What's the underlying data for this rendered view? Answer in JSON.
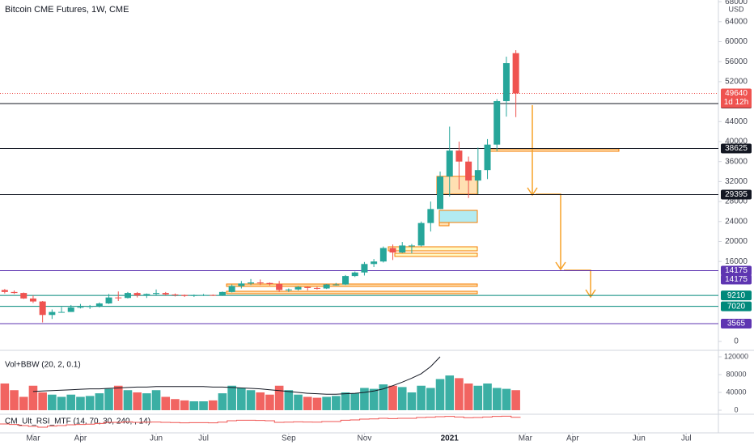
{
  "chart_data": {
    "type": "candlestick",
    "title": "Bitcoin CME Futures, 1W, CME",
    "currency": "USD",
    "xlim": [
      -0.5,
      75.4
    ],
    "xticks": [
      {
        "value": 3,
        "label": "Mar"
      },
      {
        "value": 8,
        "label": "Apr"
      },
      {
        "value": 16,
        "label": "Jun"
      },
      {
        "value": 21,
        "label": "Jul"
      },
      {
        "value": 30,
        "label": "Sep"
      },
      {
        "value": 38,
        "label": "Nov"
      },
      {
        "value": 47,
        "label": "2021"
      },
      {
        "value": 55,
        "label": "Mar"
      },
      {
        "value": 60,
        "label": "Apr"
      },
      {
        "value": 67,
        "label": "Jun"
      },
      {
        "value": 72,
        "label": "Jul"
      }
    ],
    "ylim": [
      -1620,
      68340
    ],
    "yticks": [
      0,
      16000,
      20000,
      24000,
      28000,
      32000,
      36000,
      40000,
      44000,
      52000,
      56000,
      60000,
      64000,
      68000
    ],
    "up_color": "#26a69a",
    "down_color": "#ef5350",
    "open": [
      10300,
      9900,
      9700,
      8600,
      8000,
      5300,
      5900,
      5900,
      6800,
      6900,
      7100,
      7600,
      8800,
      8700,
      9700,
      9200,
      9500,
      9700,
      9400,
      9300,
      9100,
      9300,
      9300,
      9200,
      9900,
      11100,
      11600,
      11800,
      11700,
      11500,
      10300,
      10400,
      10900,
      10700,
      10600,
      11400,
      11400,
      13100,
      13800,
      15500,
      16000,
      18700,
      17800,
      19200,
      19200,
      23700,
      26500,
      33000,
      38200,
      36000,
      32200,
      34300,
      39400,
      48100,
      57700
    ],
    "high": [
      10500,
      10200,
      9800,
      9200,
      8100,
      6400,
      6900,
      7300,
      7500,
      7300,
      7800,
      9500,
      10000,
      9900,
      9900,
      9600,
      10400,
      9900,
      9600,
      9400,
      9400,
      9500,
      9400,
      10000,
      11400,
      12100,
      12500,
      12400,
      11800,
      12100,
      10600,
      11100,
      11000,
      10900,
      11500,
      11700,
      13300,
      14000,
      15900,
      16500,
      19000,
      19400,
      19900,
      19500,
      24000,
      28000,
      34000,
      43000,
      40000,
      37000,
      38800,
      40500,
      48500,
      57000,
      58300
    ],
    "low": [
      9600,
      9500,
      8500,
      7700,
      3800,
      4500,
      5800,
      5900,
      6600,
      6500,
      6800,
      7500,
      8100,
      8600,
      8800,
      8700,
      9300,
      9200,
      9000,
      8900,
      8900,
      9100,
      9100,
      9100,
      9800,
      10600,
      11300,
      11300,
      11200,
      9900,
      9900,
      10200,
      10200,
      10400,
      10500,
      11200,
      11300,
      12900,
      13200,
      14900,
      15800,
      16300,
      17700,
      17600,
      19000,
      22000,
      26500,
      29000,
      30400,
      28700,
      29500,
      32500,
      38100,
      45000,
      44900
    ],
    "close": [
      9900,
      9700,
      8600,
      8000,
      5300,
      5900,
      5900,
      6800,
      6900,
      7100,
      7600,
      8800,
      8700,
      9700,
      9200,
      9500,
      9700,
      9400,
      9300,
      9100,
      9300,
      9300,
      9200,
      9900,
      11100,
      11600,
      11800,
      11700,
      11500,
      10300,
      10400,
      10900,
      10700,
      10600,
      11400,
      11400,
      13100,
      13800,
      15500,
      16000,
      18700,
      17800,
      19200,
      19200,
      23700,
      26500,
      33000,
      38200,
      36000,
      32200,
      34300,
      39400,
      48100,
      55700,
      49640
    ],
    "last_price": {
      "value": 49640,
      "countdown": "1d 12h",
      "color": "#ef5350"
    },
    "levels": [
      {
        "value": 47615,
        "color": "#131722"
      },
      {
        "value": 38625,
        "color": "#131722"
      },
      {
        "value": 29395,
        "color": "#131722"
      },
      {
        "value": 14175,
        "color": "#5e35b1"
      },
      {
        "value": 14175,
        "color": "#5e35b1"
      },
      {
        "value": 9210,
        "color": "#00897b"
      },
      {
        "value": 7020,
        "color": "#00897b"
      },
      {
        "value": 3565,
        "color": "#5e35b1"
      }
    ],
    "volume": {
      "title": "Vol+BBW (20, 2, 0.1)",
      "ylim": [
        -7300,
        130900
      ],
      "yticks": [
        0,
        40000,
        80000,
        120000
      ],
      "values": [
        60000,
        45000,
        30000,
        55000,
        40000,
        35000,
        30000,
        35000,
        30000,
        32000,
        38000,
        48000,
        55000,
        45000,
        40000,
        38000,
        45000,
        30000,
        25000,
        22000,
        20000,
        20000,
        22000,
        38000,
        55000,
        50000,
        45000,
        40000,
        35000,
        55000,
        45000,
        35000,
        30000,
        28000,
        30000,
        32000,
        40000,
        38000,
        50000,
        48000,
        58000,
        55000,
        52000,
        40000,
        55000,
        50000,
        70000,
        78000,
        72000,
        60000,
        55000,
        60000,
        50000,
        48000,
        45000
      ],
      "line_color": "#131722",
      "line": [
        null,
        null,
        null,
        42000,
        43000,
        44000,
        45000,
        46000,
        47000,
        48000,
        48000,
        49000,
        50000,
        51000,
        52000,
        52000,
        53000,
        53000,
        53000,
        53000,
        53000,
        53000,
        52000,
        52000,
        51000,
        50000,
        49000,
        48000,
        46000,
        44000,
        42000,
        40000,
        38000,
        37000,
        36000,
        36000,
        37000,
        38000,
        40000,
        43000,
        48000,
        55000,
        63000,
        72000,
        82000,
        98000,
        120000,
        null,
        null,
        null,
        null,
        null,
        null,
        null,
        null
      ]
    },
    "rsi": {
      "title": "CM_Ult_RSI_MTF (14, 70, 30, 240, , 14)",
      "ylim": [
        0,
        100
      ],
      "color": "#ef5350",
      "values": [
        45,
        42,
        35,
        30,
        25,
        32,
        35,
        40,
        42,
        44,
        48,
        55,
        55,
        58,
        55,
        56,
        57,
        55,
        54,
        52,
        53,
        53,
        52,
        56,
        65,
        68,
        68,
        67,
        65,
        55,
        56,
        58,
        57,
        56,
        60,
        60,
        68,
        70,
        75,
        76,
        80,
        78,
        80,
        80,
        85,
        87,
        90,
        92,
        88,
        84,
        85,
        88,
        92,
        93,
        86
      ]
    }
  }
}
